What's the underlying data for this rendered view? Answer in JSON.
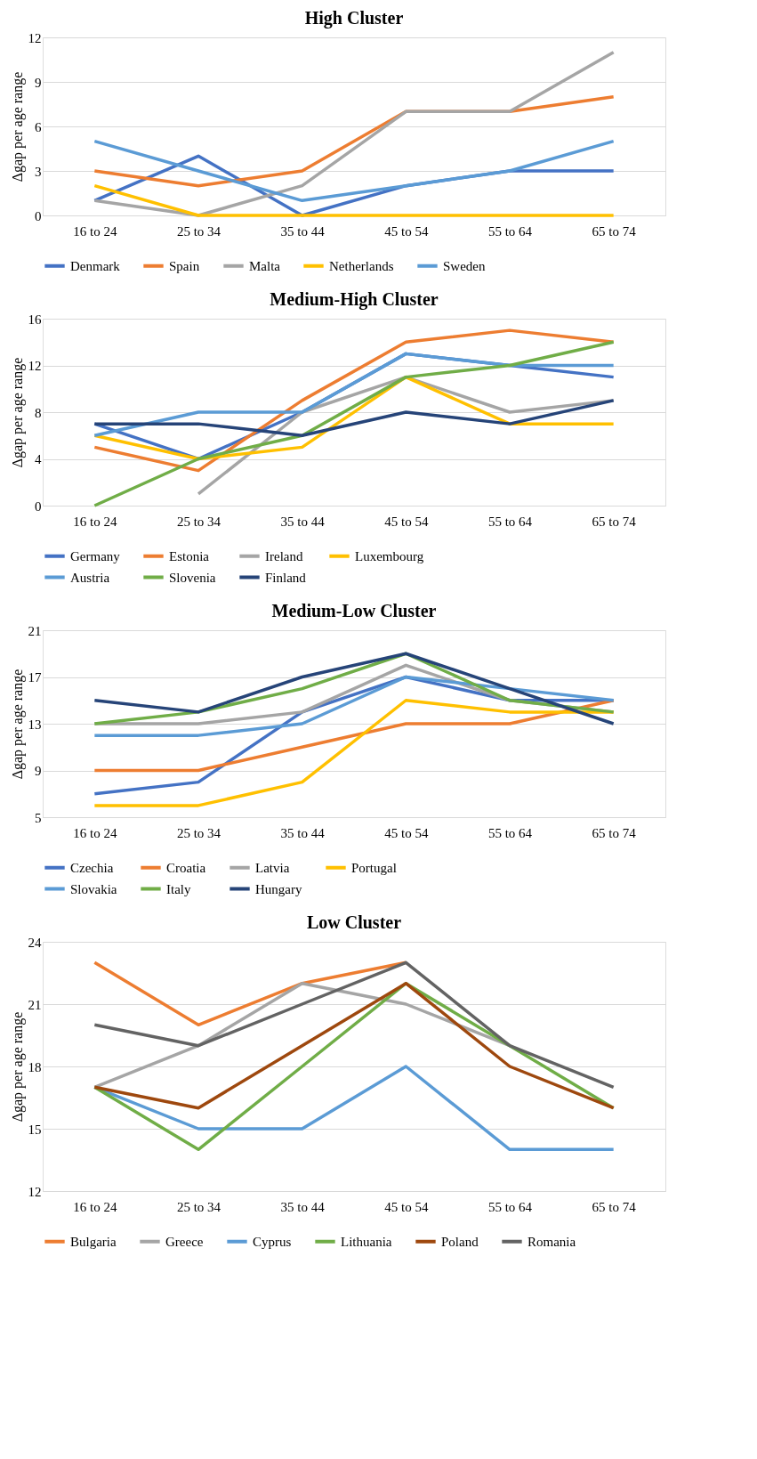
{
  "chart_data": [
    {
      "type": "line",
      "title": "High Cluster",
      "ylabel": "Δgap per age range",
      "categories": [
        "16 to 24",
        "25 to 34",
        "35 to 44",
        "45 to 54",
        "55 to 64",
        "65 to 74"
      ],
      "ylim": [
        0,
        12
      ],
      "yticks": [
        0,
        3,
        6,
        9,
        12
      ],
      "grid": "y",
      "legend": "bottom",
      "line_style": "solid",
      "series": [
        {
          "name": "Denmark",
          "color": "#4472c4",
          "values": [
            1,
            4,
            0,
            2,
            3,
            3
          ]
        },
        {
          "name": "Spain",
          "color": "#ed7d31",
          "values": [
            3,
            2,
            3,
            7,
            7,
            8
          ]
        },
        {
          "name": "Malta",
          "color": "#a5a5a5",
          "values": [
            1,
            0,
            2,
            7,
            7,
            11
          ]
        },
        {
          "name": "Netherlands",
          "color": "#ffc000",
          "values": [
            2,
            0,
            0,
            0,
            0,
            0
          ]
        },
        {
          "name": "Sweden",
          "color": "#5b9bd5",
          "values": [
            5,
            3,
            1,
            2,
            3,
            5
          ]
        }
      ]
    },
    {
      "type": "line",
      "title": "Medium-High Cluster",
      "ylabel": "Δgap per age range",
      "categories": [
        "16 to 24",
        "25 to 34",
        "35 to 44",
        "45 to 54",
        "55 to 64",
        "65 to 74"
      ],
      "ylim": [
        0,
        16
      ],
      "yticks": [
        0,
        4,
        8,
        12,
        16
      ],
      "grid": "y",
      "legend": "bottom",
      "line_style": "solid",
      "series": [
        {
          "name": "Germany",
          "color": "#4472c4",
          "values": [
            7,
            4,
            8,
            13,
            12,
            11
          ]
        },
        {
          "name": "Estonia",
          "color": "#ed7d31",
          "values": [
            5,
            3,
            9,
            14,
            15,
            14
          ]
        },
        {
          "name": "Ireland",
          "color": "#a5a5a5",
          "values": [
            null,
            1,
            8,
            11,
            8,
            9
          ]
        },
        {
          "name": "Luxembourg",
          "color": "#ffc000",
          "values": [
            6,
            4,
            5,
            11,
            7,
            7
          ]
        },
        {
          "name": "Austria",
          "color": "#5b9bd5",
          "values": [
            6,
            8,
            8,
            13,
            12,
            12
          ]
        },
        {
          "name": "Slovenia",
          "color": "#70ad47",
          "values": [
            0,
            4,
            6,
            11,
            12,
            14
          ]
        },
        {
          "name": "Finland",
          "color": "#264478",
          "values": [
            7,
            7,
            6,
            8,
            7,
            9
          ]
        }
      ]
    },
    {
      "type": "line",
      "title": "Medium-Low Cluster",
      "ylabel": "Δgap per age range",
      "categories": [
        "16 to 24",
        "25 to 34",
        "35 to 44",
        "45 to 54",
        "55 to 64",
        "65 to 74"
      ],
      "ylim": [
        5,
        21
      ],
      "yticks": [
        5,
        9,
        13,
        17,
        21
      ],
      "grid": "y",
      "legend": "bottom",
      "line_style": "solid",
      "series": [
        {
          "name": "Czechia",
          "color": "#4472c4",
          "values": [
            7,
            8,
            14,
            17,
            15,
            15
          ]
        },
        {
          "name": "Croatia",
          "color": "#ed7d31",
          "values": [
            9,
            9,
            11,
            13,
            13,
            15
          ]
        },
        {
          "name": "Latvia",
          "color": "#a5a5a5",
          "values": [
            13,
            13,
            14,
            18,
            15,
            14
          ]
        },
        {
          "name": "Portugal",
          "color": "#ffc000",
          "values": [
            6,
            6,
            8,
            15,
            14,
            14
          ]
        },
        {
          "name": "Slovakia",
          "color": "#5b9bd5",
          "values": [
            12,
            12,
            13,
            17,
            16,
            15
          ]
        },
        {
          "name": "Italy",
          "color": "#70ad47",
          "values": [
            13,
            14,
            16,
            19,
            15,
            14
          ]
        },
        {
          "name": "Hungary",
          "color": "#264478",
          "values": [
            15,
            14,
            17,
            19,
            16,
            13
          ]
        }
      ]
    },
    {
      "type": "line",
      "title": "Low Cluster",
      "ylabel": "Δgap per age range",
      "categories": [
        "16 to 24",
        "25 to 34",
        "35 to 44",
        "45 to 54",
        "55 to 64",
        "65 to 74"
      ],
      "ylim": [
        12,
        24
      ],
      "yticks": [
        12,
        15,
        18,
        21,
        24
      ],
      "grid": "y",
      "legend": "bottom",
      "line_style": "solid",
      "series": [
        {
          "name": "Bulgaria",
          "color": "#ed7d31",
          "values": [
            23,
            20,
            22,
            23,
            null,
            null
          ]
        },
        {
          "name": "Greece",
          "color": "#a5a5a5",
          "values": [
            17,
            19,
            22,
            21,
            19,
            null
          ]
        },
        {
          "name": "Cyprus",
          "color": "#5b9bd5",
          "values": [
            17,
            15,
            15,
            18,
            14,
            14
          ]
        },
        {
          "name": "Lithuania",
          "color": "#70ad47",
          "values": [
            17,
            14,
            18,
            22,
            19,
            16
          ]
        },
        {
          "name": "Poland",
          "color": "#9e480e",
          "values": [
            17,
            16,
            19,
            22,
            18,
            16
          ]
        },
        {
          "name": "Romania",
          "color": "#636363",
          "values": [
            20,
            19,
            21,
            23,
            19,
            17
          ]
        }
      ]
    }
  ]
}
